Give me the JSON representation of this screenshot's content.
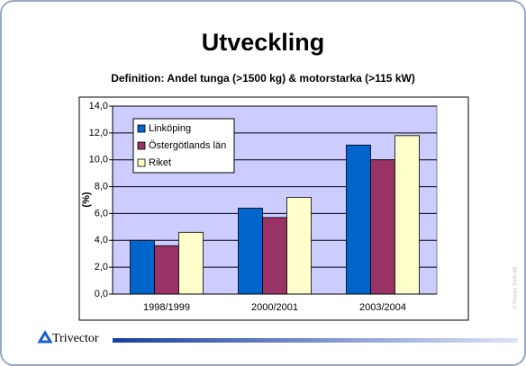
{
  "chart_data": {
    "type": "bar",
    "title": "Utveckling",
    "subtitle": "Definition: Andel tunga (>1500 kg) & motorstarka (>115 kW)",
    "y_label": "(%)",
    "categories": [
      "1998/1999",
      "2000/2001",
      "2003/2004"
    ],
    "series": [
      {
        "name": "Linköping",
        "color": "#0066cc",
        "values": [
          4.0,
          6.4,
          11.1
        ]
      },
      {
        "name": "Östergötlands län",
        "color": "#993366",
        "values": [
          3.6,
          5.7,
          10.0
        ]
      },
      {
        "name": "Riket",
        "color": "#ffffcc",
        "values": [
          4.6,
          7.2,
          11.8
        ]
      }
    ],
    "ylim": [
      0,
      14
    ],
    "yticks": [
      {
        "value": 0,
        "label": "0,0"
      },
      {
        "value": 2,
        "label": "2,0"
      },
      {
        "value": 4,
        "label": "4,0"
      },
      {
        "value": 6,
        "label": "6,0"
      },
      {
        "value": 8,
        "label": "8,0"
      },
      {
        "value": 10,
        "label": "10,0"
      },
      {
        "value": 12,
        "label": "12,0"
      },
      {
        "value": 14,
        "label": "14,0"
      }
    ],
    "grid": true,
    "legend": "top-left",
    "plot_background": "#ccccff"
  },
  "footer": {
    "logo": "Trivector",
    "copyright": "© Trivector Traffic AB"
  }
}
